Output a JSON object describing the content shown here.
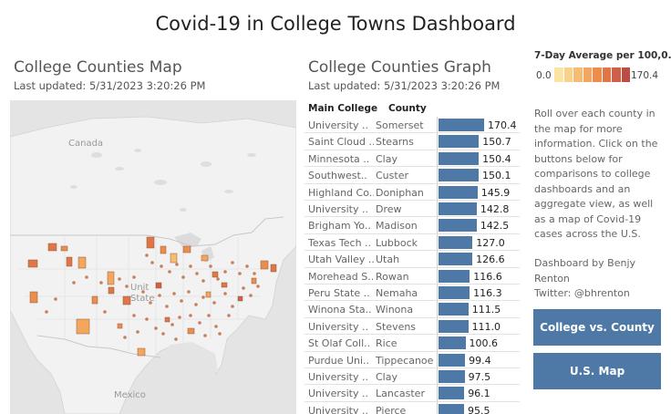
{
  "title": "Covid-19 in College Towns Dashboard",
  "map": {
    "title": "College Counties Map",
    "updated": "Last updated: 5/31/2023 3:20:26 PM",
    "labels": {
      "canada": "Canada",
      "united": "Unit",
      "states": "State",
      "mexico": "Mexico"
    }
  },
  "graph": {
    "title": "College Counties Graph",
    "updated": "Last updated: 5/31/2023 3:20:26 PM",
    "col_college": "Main College",
    "col_county": "County",
    "rows": [
      {
        "college": "University ..",
        "county": "Somerset",
        "value": "170.4"
      },
      {
        "college": "Saint Cloud ..",
        "county": "Stearns",
        "value": "150.7"
      },
      {
        "college": "Minnesota ..",
        "county": "Clay",
        "value": "150.4"
      },
      {
        "college": "Southwest..",
        "county": "Custer",
        "value": "150.1"
      },
      {
        "college": "Highland Co..",
        "county": "Doniphan",
        "value": "145.9"
      },
      {
        "college": "University ..",
        "county": "Drew",
        "value": "142.8"
      },
      {
        "college": "Brigham Yo..",
        "county": "Madison",
        "value": "142.5"
      },
      {
        "college": "Texas Tech ..",
        "county": "Lubbock",
        "value": "127.0"
      },
      {
        "college": "Utah Valley ..",
        "county": "Utah",
        "value": "126.6"
      },
      {
        "college": "Morehead S..",
        "county": "Rowan",
        "value": "116.6"
      },
      {
        "college": "Peru State ..",
        "county": "Nemaha",
        "value": "116.3"
      },
      {
        "college": "Winona Sta..",
        "county": "Winona",
        "value": "111.5"
      },
      {
        "college": "University ..",
        "county": "Stevens",
        "value": "111.0"
      },
      {
        "college": "St Olaf Coll..",
        "county": "Rice",
        "value": "100.6"
      },
      {
        "college": "Purdue Uni..",
        "county": "Tippecanoe",
        "value": "99.4"
      },
      {
        "college": "University ..",
        "county": "Clay",
        "value": "97.5"
      },
      {
        "college": "University ..",
        "county": "Lancaster",
        "value": "96.1"
      },
      {
        "college": "University ..",
        "county": "Pierce",
        "value": "95.5"
      }
    ]
  },
  "legend": {
    "title": "7-Day Average per 100,0...",
    "min": "0.0",
    "max": "170.4",
    "colors": [
      "#fbe4a3",
      "#f9d289",
      "#f6bd72",
      "#f2a65e",
      "#ec8d4e",
      "#e07548",
      "#cf5f46",
      "#bb4d46"
    ]
  },
  "info": "Roll over each county in the map for more information. Click on the buttons below for comparisons to college dashboards and an aggregate view, as well as a map of Covid-19 cases across the U.S.",
  "credit": {
    "line1": "Dashboard by Benjy",
    "line2": "Renton",
    "line3": "Twitter: @bhrenton"
  },
  "buttons": {
    "college_vs_county": "College vs. County",
    "us_map": "U.S. Map"
  }
}
